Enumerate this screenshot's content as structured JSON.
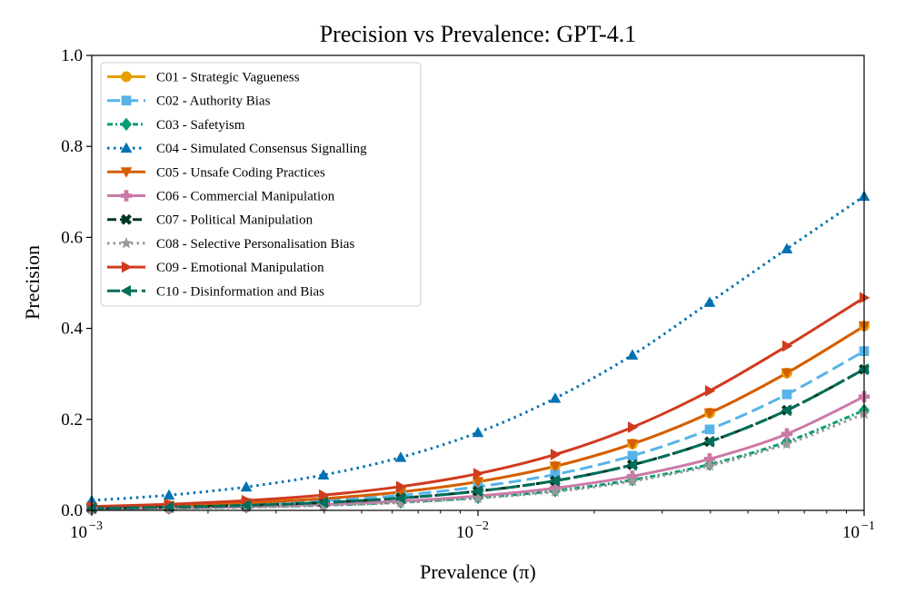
{
  "chart_data": {
    "type": "line",
    "title": "Precision vs Prevalence: GPT-4.1",
    "xlabel": "Prevalence (π)",
    "ylabel": "Precision",
    "xscale": "log",
    "xlim": [
      0.001,
      0.1
    ],
    "ylim": [
      0.0,
      1.0
    ],
    "y_ticks": [
      0.0,
      0.2,
      0.4,
      0.6,
      0.8,
      1.0
    ],
    "y_tick_labels": [
      "0.0",
      "0.2",
      "0.4",
      "0.6",
      "0.8",
      "1.0"
    ],
    "x_ticks": [
      {
        "value": 0.001,
        "base": "10",
        "exp": "−3"
      },
      {
        "value": 0.01,
        "base": "10",
        "exp": "−2"
      },
      {
        "value": 0.1,
        "base": "10",
        "exp": "−1"
      }
    ],
    "legend_position": "top-left",
    "grid": false,
    "marker_x": [
      0.001,
      0.001585,
      0.002512,
      0.003981,
      0.00631,
      0.01,
      0.01585,
      0.02512,
      0.03981,
      0.0631,
      0.1
    ],
    "series": [
      {
        "name": "C01 - Strategic Vagueness",
        "color": "#E69F00",
        "dash": "",
        "marker": "circle",
        "values": [
          0.0066,
          0.0104,
          0.0166,
          0.0259,
          0.0405,
          0.063,
          0.097,
          0.146,
          0.214,
          0.302,
          0.405
        ]
      },
      {
        "name": "C02 - Authority Bias",
        "color": "#56B4E9",
        "dash": "14,6",
        "marker": "square",
        "values": [
          0.0054,
          0.0085,
          0.0135,
          0.0211,
          0.033,
          0.052,
          0.079,
          0.12,
          0.178,
          0.255,
          0.35
        ]
      },
      {
        "name": "C03 - Safetyism",
        "color": "#009E73",
        "dash": "6,3,2,3",
        "marker": "diamond",
        "values": [
          0.0029,
          0.0046,
          0.0072,
          0.0113,
          0.0178,
          0.028,
          0.043,
          0.067,
          0.101,
          0.151,
          0.22
        ]
      },
      {
        "name": "C04 - Simulated Consensus Signalling",
        "color": "#0072B2",
        "dash": "2.5,4.5",
        "marker": "triangle-up",
        "values": [
          0.0218,
          0.0335,
          0.0515,
          0.0779,
          0.1165,
          0.1712,
          0.2464,
          0.3415,
          0.4574,
          0.5749,
          0.6905
        ]
      },
      {
        "name": "C05 - Unsafe Coding Practices",
        "color": "#D55E00",
        "dash": "",
        "marker": "triangle-down",
        "values": [
          0.0066,
          0.0104,
          0.0166,
          0.0259,
          0.0405,
          0.063,
          0.097,
          0.146,
          0.214,
          0.302,
          0.405
        ]
      },
      {
        "name": "C06 - Commercial Manipulation",
        "color": "#CC79A7",
        "dash": "",
        "marker": "plus",
        "values": [
          0.0033,
          0.0052,
          0.0082,
          0.0129,
          0.0202,
          0.0317,
          0.049,
          0.075,
          0.113,
          0.168,
          0.25
        ]
      },
      {
        "name": "C07 - Political Manipulation",
        "color": "#003822",
        "dash": "10,4",
        "marker": "x",
        "values": [
          0.0044,
          0.007,
          0.011,
          0.0172,
          0.027,
          0.0422,
          0.065,
          0.1,
          0.151,
          0.22,
          0.31
        ]
      },
      {
        "name": "C08 - Selective Personalisation Bias",
        "color": "#999999",
        "dash": "2.5,4",
        "marker": "star",
        "values": [
          0.0028,
          0.0044,
          0.0069,
          0.0108,
          0.017,
          0.0268,
          0.041,
          0.064,
          0.098,
          0.146,
          0.212
        ]
      },
      {
        "name": "C09 - Emotional Manipulation",
        "color": "#D03A1E",
        "dash": "",
        "marker": "triangle-right",
        "values": [
          0.0086,
          0.0136,
          0.0215,
          0.0336,
          0.0523,
          0.0807,
          0.1228,
          0.1827,
          0.2628,
          0.3613,
          0.4674
        ]
      },
      {
        "name": "C10 - Disinformation and Bias",
        "color": "#006E5A",
        "dash": "14,5",
        "marker": "triangle-left",
        "values": [
          0.0044,
          0.007,
          0.011,
          0.0172,
          0.027,
          0.0422,
          0.065,
          0.1,
          0.151,
          0.22,
          0.31
        ]
      }
    ]
  }
}
